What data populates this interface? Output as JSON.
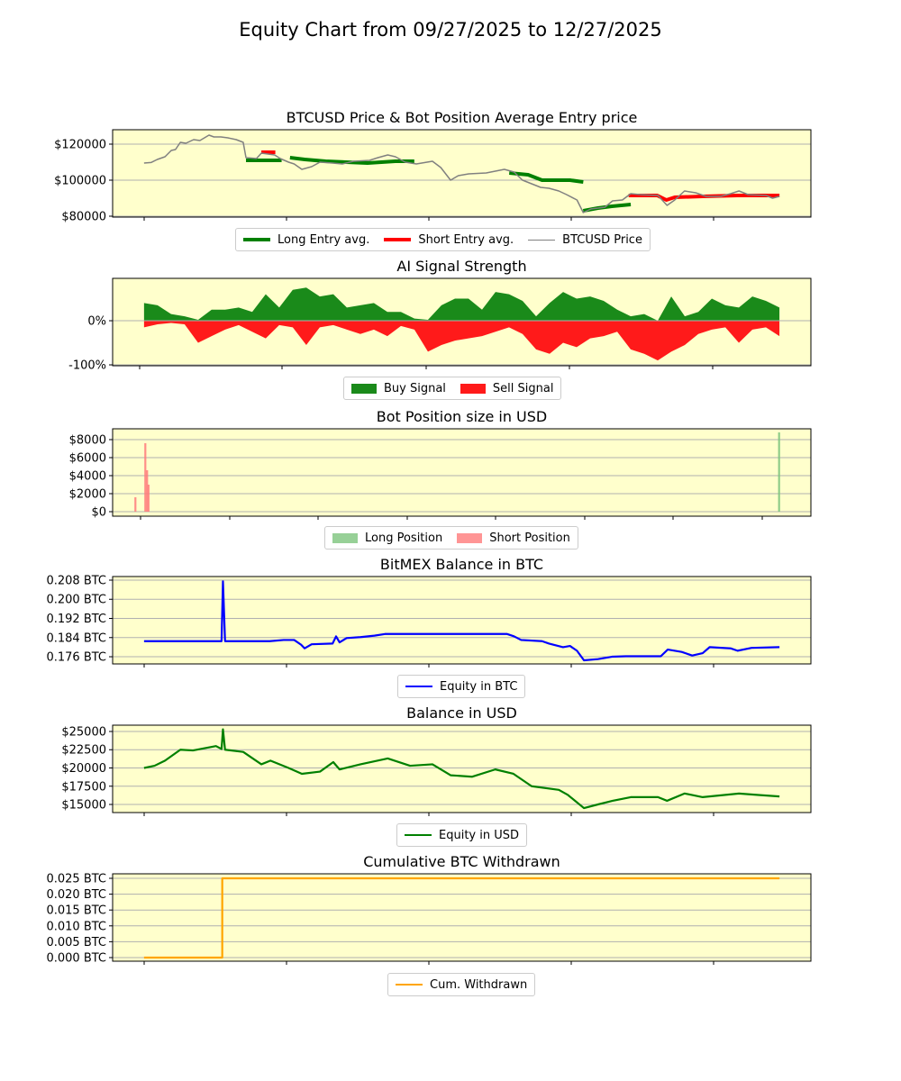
{
  "title": "Equity Chart from 09/27/2025 to 12/27/2025",
  "colors": {
    "background": "#ffffcc",
    "grid": "#b0b0b0"
  },
  "chart_data": [
    {
      "type": "line",
      "title": "BTCUSD Price & Bot Position Average Entry price",
      "xlim": [
        -4.5,
        95.5
      ],
      "ylim": [
        79500,
        128000
      ],
      "yticks": [
        {
          "value": 80000,
          "label": "$80000"
        },
        {
          "value": 100000,
          "label": "$100000"
        },
        {
          "value": 120000,
          "label": "$120000"
        }
      ],
      "legend_placement": "bottom",
      "series": [
        {
          "name": "Long Entry avg.",
          "color": "#008000",
          "kind": "segments",
          "width": 4,
          "segments": [
            [
              [
                14.6,
                111000
              ],
              [
                19.7,
                111000
              ]
            ],
            [
              [
                20.9,
                112500
              ],
              [
                23,
                111500
              ],
              [
                26,
                110500
              ],
              [
                32,
                109500
              ],
              [
                36,
                110500
              ],
              [
                38.7,
                110500
              ]
            ],
            [
              [
                52.3,
                104000
              ],
              [
                55,
                103000
              ],
              [
                57,
                100000
              ],
              [
                61,
                100000
              ],
              [
                62.9,
                99000
              ]
            ],
            [
              [
                62.9,
                83000
              ],
              [
                65,
                84500
              ],
              [
                67,
                85500
              ],
              [
                69.7,
                86500
              ]
            ]
          ]
        },
        {
          "name": "Short Entry avg.",
          "color": "#ff0000",
          "kind": "segments",
          "width": 4,
          "segments": [
            [
              [
                16.8,
                115500
              ],
              [
                18.8,
                115500
              ]
            ],
            [
              [
                69.4,
                91500
              ],
              [
                73.5,
                91500
              ],
              [
                74.8,
                89000
              ],
              [
                76,
                90500
              ],
              [
                80,
                91000
              ],
              [
                85,
                91500
              ],
              [
                91,
                91500
              ]
            ]
          ]
        },
        {
          "name": "BTCUSD Price",
          "color": "#808080",
          "kind": "line",
          "width": 1.5,
          "points": [
            [
              0,
              109500
            ],
            [
              1,
              109800
            ],
            [
              1.9,
              111500
            ],
            [
              3,
              113000
            ],
            [
              3.9,
              116500
            ],
            [
              4.5,
              117000
            ],
            [
              5.2,
              121000
            ],
            [
              6,
              120500
            ],
            [
              7.1,
              122500
            ],
            [
              8,
              122000
            ],
            [
              9.3,
              125000
            ],
            [
              10,
              124000
            ],
            [
              11,
              124000
            ],
            [
              12,
              123500
            ],
            [
              13.2,
              122500
            ],
            [
              14.2,
              121000
            ],
            [
              14.6,
              112500
            ],
            [
              16.1,
              112000
            ],
            [
              16.8,
              115000
            ],
            [
              18.7,
              114000
            ],
            [
              19.5,
              112000
            ],
            [
              20.7,
              110000
            ],
            [
              21.5,
              109000
            ],
            [
              22.6,
              106000
            ],
            [
              24,
              107500
            ],
            [
              25.2,
              110000
            ],
            [
              27,
              109500
            ],
            [
              28.4,
              109000
            ],
            [
              30,
              110500
            ],
            [
              32.3,
              111000
            ],
            [
              33.5,
              112500
            ],
            [
              34.9,
              114000
            ],
            [
              36,
              113000
            ],
            [
              37.4,
              110000
            ],
            [
              39,
              109000
            ],
            [
              41.3,
              110500
            ],
            [
              42.5,
              107000
            ],
            [
              43.9,
              100000
            ],
            [
              45,
              102500
            ],
            [
              46.5,
              103500
            ],
            [
              49,
              104000
            ],
            [
              51.6,
              106000
            ],
            [
              53,
              104500
            ],
            [
              54.2,
              100000
            ],
            [
              55.5,
              98000
            ],
            [
              56.8,
              96000
            ],
            [
              58,
              95500
            ],
            [
              59.4,
              94000
            ],
            [
              60.5,
              92000
            ],
            [
              62,
              89000
            ],
            [
              62.9,
              82000
            ],
            [
              64,
              84000
            ],
            [
              66,
              85000
            ],
            [
              67.1,
              88500
            ],
            [
              68.5,
              89000
            ],
            [
              69.7,
              92500
            ],
            [
              71,
              92000
            ],
            [
              73.6,
              91500
            ],
            [
              74.9,
              86000
            ],
            [
              76,
              89000
            ],
            [
              77.4,
              94000
            ],
            [
              79,
              93000
            ],
            [
              80.5,
              91000
            ],
            [
              82.6,
              91000
            ],
            [
              84,
              92500
            ],
            [
              85.2,
              94000
            ],
            [
              86.5,
              92000
            ],
            [
              89.1,
              91500
            ],
            [
              90,
              90000
            ],
            [
              91,
              91000
            ]
          ]
        }
      ]
    },
    {
      "type": "area",
      "title": "AI Signal Strength",
      "xlim": [
        -4.5,
        95.5
      ],
      "ylim": [
        -102,
        96
      ],
      "yticks": [
        {
          "value": -100,
          "label": "-100%"
        },
        {
          "value": 0,
          "label": "0%"
        }
      ],
      "legend_placement": "bottom",
      "x_start": 0,
      "x_step": 1.936,
      "series": [
        {
          "name": "Buy Signal",
          "color": "#1a8a1a",
          "values": [
            40,
            35,
            15,
            10,
            2,
            25,
            25,
            30,
            20,
            60,
            30,
            70,
            75,
            55,
            60,
            30,
            35,
            40,
            20,
            20,
            5,
            2,
            35,
            50,
            50,
            25,
            65,
            60,
            45,
            10,
            40,
            65,
            50,
            55,
            45,
            25,
            10,
            15,
            0,
            55,
            10,
            20,
            50,
            35,
            30,
            55,
            45,
            30
          ]
        },
        {
          "name": "Sell Signal",
          "color": "#ff1a1a",
          "values": [
            -15,
            -8,
            -5,
            -8,
            -50,
            -35,
            -20,
            -10,
            -25,
            -40,
            -10,
            -15,
            -55,
            -15,
            -10,
            -20,
            -30,
            -20,
            -35,
            -12,
            -20,
            -70,
            -55,
            -45,
            -40,
            -35,
            -25,
            -15,
            -30,
            -65,
            -75,
            -50,
            -60,
            -40,
            -35,
            -25,
            -65,
            -75,
            -90,
            -70,
            -55,
            -30,
            -20,
            -15,
            -50,
            -20,
            -15,
            -35
          ]
        }
      ]
    },
    {
      "type": "bar",
      "title": "Bot Position size in USD",
      "xlim": [
        -3,
        95.5
      ],
      "ylim": [
        -500,
        9200
      ],
      "yticks": [
        {
          "value": 0,
          "label": "$0"
        },
        {
          "value": 2000,
          "label": "$2000"
        },
        {
          "value": 4000,
          "label": "$4000"
        },
        {
          "value": 6000,
          "label": "$6000"
        },
        {
          "value": 8000,
          "label": "$8000"
        }
      ],
      "legend_placement": "bottom",
      "series": [
        {
          "name": "Long Position",
          "color": "#7dc47d",
          "points": [
            [
              91,
              8800
            ]
          ]
        },
        {
          "name": "Short Position",
          "color": "#ff7b7b",
          "points": [
            [
              0.2,
              1600
            ],
            [
              1.6,
              7600
            ],
            [
              1.85,
              4600
            ],
            [
              2.05,
              3000
            ]
          ]
        }
      ]
    },
    {
      "type": "line",
      "title": "BitMEX Balance in BTC",
      "xlim": [
        -4.5,
        95.5
      ],
      "ylim": [
        0.173,
        0.2095
      ],
      "yticks": [
        {
          "value": 0.176,
          "label": "0.176 BTC"
        },
        {
          "value": 0.184,
          "label": "0.184 BTC"
        },
        {
          "value": 0.192,
          "label": "0.192 BTC"
        },
        {
          "value": 0.2,
          "label": "0.200 BTC"
        },
        {
          "value": 0.208,
          "label": "0.208 BTC"
        }
      ],
      "legend_placement": "bottom",
      "series": [
        {
          "name": "Equity in BTC",
          "color": "#0000ff",
          "kind": "line",
          "width": 2.2,
          "points": [
            [
              0,
              0.1825
            ],
            [
              11.1,
              0.1825
            ],
            [
              11.3,
              0.2075
            ],
            [
              11.6,
              0.1825
            ],
            [
              18,
              0.1825
            ],
            [
              20,
              0.183
            ],
            [
              21.5,
              0.183
            ],
            [
              22.5,
              0.181
            ],
            [
              23,
              0.1795
            ],
            [
              24,
              0.1812
            ],
            [
              27,
              0.1815
            ],
            [
              27.5,
              0.1845
            ],
            [
              28,
              0.182
            ],
            [
              29,
              0.1838
            ],
            [
              31,
              0.1842
            ],
            [
              33,
              0.1848
            ],
            [
              34.5,
              0.1855
            ],
            [
              40,
              0.1855
            ],
            [
              52,
              0.1855
            ],
            [
              53,
              0.1845
            ],
            [
              54,
              0.183
            ],
            [
              57,
              0.1825
            ],
            [
              58,
              0.1815
            ],
            [
              60,
              0.18
            ],
            [
              61,
              0.1805
            ],
            [
              62,
              0.1785
            ],
            [
              63,
              0.1745
            ],
            [
              65,
              0.175
            ],
            [
              67,
              0.176
            ],
            [
              69,
              0.1762
            ],
            [
              74,
              0.1762
            ],
            [
              75,
              0.179
            ],
            [
              77,
              0.178
            ],
            [
              78.5,
              0.1765
            ],
            [
              80,
              0.1775
            ],
            [
              81,
              0.18
            ],
            [
              84,
              0.1795
            ],
            [
              85,
              0.1785
            ],
            [
              87,
              0.1797
            ],
            [
              91,
              0.18
            ]
          ]
        }
      ]
    },
    {
      "type": "line",
      "title": "Balance in USD",
      "xlim": [
        -4.5,
        95.5
      ],
      "ylim": [
        13889,
        25864
      ],
      "yticks": [
        {
          "value": 15000,
          "label": "$15000"
        },
        {
          "value": 17500,
          "label": "$17500"
        },
        {
          "value": 20000,
          "label": "$20000"
        },
        {
          "value": 22500,
          "label": "$22500"
        },
        {
          "value": 25000,
          "label": "$25000"
        }
      ],
      "legend_placement": "bottom",
      "series": [
        {
          "name": "Equity in USD",
          "color": "#008000",
          "kind": "line",
          "width": 2.2,
          "points": [
            [
              0,
              20000
            ],
            [
              1.5,
              20300
            ],
            [
              3,
              21000
            ],
            [
              5.2,
              22500
            ],
            [
              7,
              22400
            ],
            [
              10.3,
              23000
            ],
            [
              11.1,
              22600
            ],
            [
              11.3,
              25300
            ],
            [
              11.6,
              22500
            ],
            [
              14.2,
              22200
            ],
            [
              16.8,
              20500
            ],
            [
              18.1,
              21000
            ],
            [
              20.7,
              20000
            ],
            [
              22.6,
              19200
            ],
            [
              25.2,
              19500
            ],
            [
              27.1,
              20800
            ],
            [
              28,
              19800
            ],
            [
              31,
              20500
            ],
            [
              34.9,
              21300
            ],
            [
              38.1,
              20300
            ],
            [
              41.3,
              20500
            ],
            [
              43.9,
              19000
            ],
            [
              47,
              18800
            ],
            [
              50.3,
              19800
            ],
            [
              52.9,
              19200
            ],
            [
              55.5,
              17500
            ],
            [
              59.4,
              17000
            ],
            [
              60.7,
              16300
            ],
            [
              63,
              14500
            ],
            [
              65,
              15000
            ],
            [
              67.1,
              15500
            ],
            [
              69.7,
              16000
            ],
            [
              73.6,
              16000
            ],
            [
              74.9,
              15500
            ],
            [
              77.4,
              16500
            ],
            [
              80,
              16000
            ],
            [
              85.2,
              16500
            ],
            [
              88,
              16300
            ],
            [
              91,
              16100
            ]
          ]
        }
      ]
    },
    {
      "type": "line",
      "title": "Cumulative BTC Withdrawn",
      "xlim": [
        -4.5,
        95.5
      ],
      "ylim": [
        -0.00114,
        0.02642
      ],
      "yticks": [
        {
          "value": 0,
          "label": "0.000 BTC"
        },
        {
          "value": 0.005,
          "label": "0.005 BTC"
        },
        {
          "value": 0.01,
          "label": "0.010 BTC"
        },
        {
          "value": 0.015,
          "label": "0.015 BTC"
        },
        {
          "value": 0.02,
          "label": "0.020 BTC"
        },
        {
          "value": 0.025,
          "label": "0.025 BTC"
        }
      ],
      "legend_placement": "bottom",
      "series": [
        {
          "name": "Cum. Withdrawn",
          "color": "#ffa500",
          "kind": "line",
          "width": 2.2,
          "points": [
            [
              0,
              0
            ],
            [
              11.2,
              0
            ],
            [
              11.2,
              0.025
            ],
            [
              91,
              0.025
            ]
          ]
        }
      ]
    }
  ]
}
